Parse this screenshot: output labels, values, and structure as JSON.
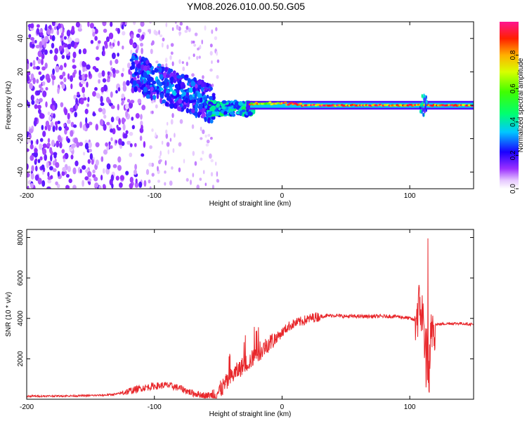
{
  "title": "YM08.2026.010.00.50.G05",
  "chart_data": [
    {
      "type": "heatmap",
      "title": "YM08.2026.010.00.50.G05",
      "xlabel": "Height of straight line (km)",
      "ylabel": "Frequency (Hz)",
      "xlim": [
        -200,
        150
      ],
      "ylim": [
        -50,
        50
      ],
      "x_ticks": [
        "-200",
        "-100",
        "0",
        "100"
      ],
      "y_ticks": [
        "-40",
        "-20",
        "0",
        "20",
        "40"
      ],
      "colorbar": {
        "label": "Normalized spectral amplitude",
        "range": [
          0,
          1
        ],
        "ticks": [
          "0.0",
          "0.2",
          "0.4",
          "0.6",
          "0.8"
        ]
      },
      "description_regions": [
        {
          "x_range": [
            -200,
            -110
          ],
          "freq_range": [
            -50,
            50
          ],
          "amplitude": "low (scattered noise)"
        },
        {
          "x_range": [
            -115,
            -55
          ],
          "freq_range": [
            -5,
            20
          ],
          "amplitude": "medium, downward trend toward 0 Hz"
        },
        {
          "x_range": [
            -55,
            -25
          ],
          "freq_range": [
            -5,
            3
          ],
          "amplitude": "medium-high"
        },
        {
          "x_range": [
            -25,
            150
          ],
          "freq_range": [
            -1,
            2
          ],
          "amplitude": "high (0.8-1.0) narrow band near 0 Hz"
        }
      ]
    },
    {
      "type": "line",
      "xlabel": "Height of straight line (km)",
      "ylabel": "SNR (10 * v/v)",
      "xlim": [
        -200,
        150
      ],
      "ylim": [
        0,
        8400
      ],
      "x_ticks": [
        "-200",
        "-100",
        "0",
        "100"
      ],
      "y_ticks": [
        "2000",
        "4000",
        "6000",
        "8000"
      ],
      "series": [
        {
          "name": "SNR",
          "color": "#e8262a",
          "x": [
            -200,
            -180,
            -160,
            -140,
            -130,
            -120,
            -110,
            -100,
            -90,
            -80,
            -70,
            -60,
            -55,
            -50,
            -45,
            -40,
            -35,
            -30,
            -25,
            -20,
            -15,
            -10,
            -5,
            0,
            5,
            10,
            15,
            20,
            25,
            30,
            40,
            50,
            60,
            70,
            80,
            90,
            100,
            104,
            106,
            108,
            110,
            112,
            114,
            115,
            116,
            118,
            120,
            130,
            140,
            150
          ],
          "y": [
            150,
            160,
            170,
            200,
            250,
            400,
            550,
            650,
            700,
            550,
            300,
            180,
            200,
            350,
            700,
            1100,
            1400,
            1700,
            1900,
            2200,
            2500,
            2800,
            3000,
            3300,
            3600,
            3750,
            3850,
            3950,
            4050,
            4100,
            4150,
            4100,
            4100,
            4100,
            4100,
            4100,
            4000,
            3900,
            4300,
            4600,
            4100,
            3000,
            2000,
            1400,
            2500,
            3850,
            3700,
            3750,
            3750,
            3700
          ]
        }
      ]
    }
  ]
}
